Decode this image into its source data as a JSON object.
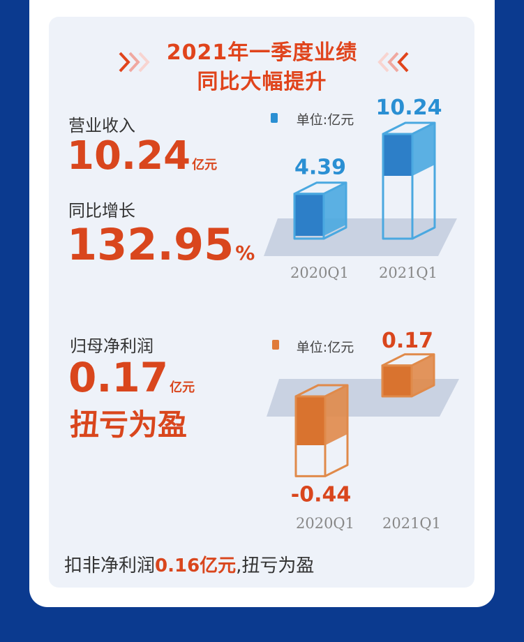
{
  "title": {
    "line1": "2021年一季度业绩",
    "line2": "同比大幅提升"
  },
  "revenue": {
    "label": "营业收入",
    "value": "10.24",
    "value_unit": "亿元",
    "growth_label": "同比增长",
    "growth_value": "132.95",
    "growth_unit": "%"
  },
  "profit": {
    "label": "归母净利润",
    "value": "0.17",
    "value_unit": "亿元",
    "status": "扭亏为盈"
  },
  "footer": {
    "prefix": "扣非净利润",
    "highlight": "0.16亿元",
    "suffix": ",扭亏为盈"
  },
  "colors": {
    "accent": "#d9461d",
    "blue": "#2a8fd3",
    "orange": "#e07b3a",
    "background": "#0b3a8f"
  },
  "chart_data": [
    {
      "type": "bar",
      "unit_label": "单位:亿元",
      "categories": [
        "2020Q1",
        "2021Q1"
      ],
      "values": [
        4.39,
        10.24
      ],
      "value_labels": [
        "4.39",
        "10.24"
      ],
      "ylim": [
        0,
        10.24
      ]
    },
    {
      "type": "bar",
      "unit_label": "单位:亿元",
      "categories": [
        "2020Q1",
        "2021Q1"
      ],
      "values": [
        -0.44,
        0.17
      ],
      "value_labels": [
        "-0.44",
        "0.17"
      ],
      "ylim": [
        -0.44,
        0.17
      ]
    }
  ]
}
